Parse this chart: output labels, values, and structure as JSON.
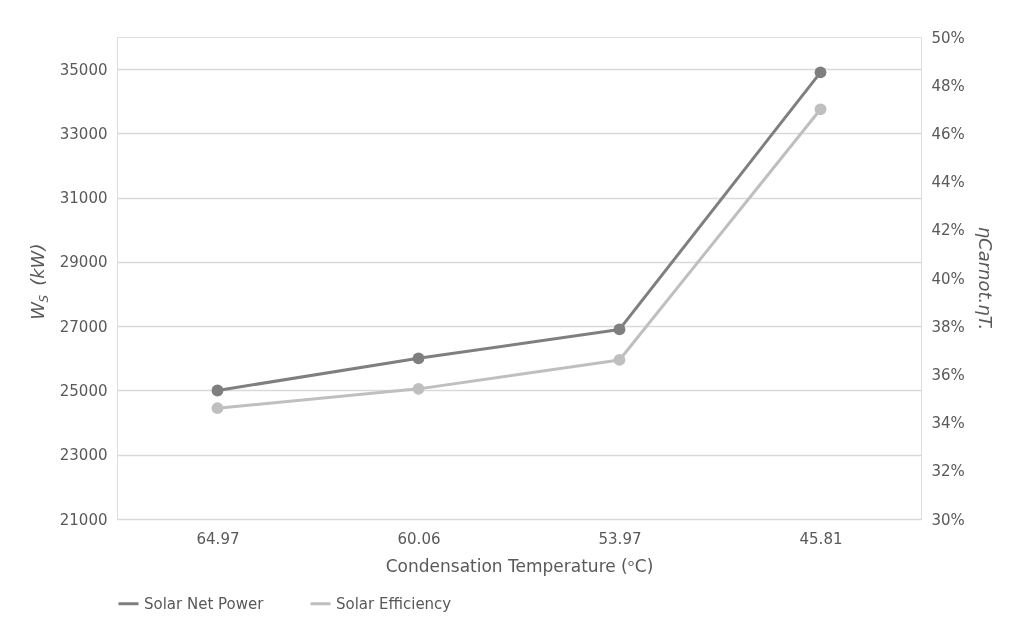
{
  "chart_data": {
    "type": "line",
    "xlabel": "Condensation Temperature (ᵒC)",
    "ylabel": "W$_{S}$ (kW)",
    "y2label": "ηCarnot.ηT.",
    "categories": [
      "64.97",
      "60.06",
      "53.97",
      "45.81"
    ],
    "series": [
      {
        "name": "Solar Net Power",
        "color": "#7f7f7f",
        "values": [
          25000,
          26000,
          26900,
          34900
        ]
      },
      {
        "name": "Solar Efficiency",
        "color": "#bfbfbf",
        "axis": "y2",
        "values": [
          34.6,
          35.4,
          36.6,
          47.0
        ]
      }
    ],
    "ylim": [
      21000,
      36000
    ],
    "yticks": [
      21000,
      23000,
      25000,
      27000,
      29000,
      31000,
      33000,
      35000
    ],
    "y2lim": [
      30,
      50
    ],
    "y2ticks": [
      {
        "value": 30,
        "label": "30%"
      },
      {
        "value": 32,
        "label": "32%"
      },
      {
        "value": 34,
        "label": "34%"
      },
      {
        "value": 36,
        "label": "36%"
      },
      {
        "value": 38,
        "label": "38%"
      },
      {
        "value": 40,
        "label": "40%"
      },
      {
        "value": 42,
        "label": "42%"
      },
      {
        "value": 44,
        "label": "44%"
      },
      {
        "value": 46,
        "label": "46%"
      },
      {
        "value": 48,
        "label": "48%"
      },
      {
        "value": 50,
        "label": "50%"
      }
    ],
    "grid": "y",
    "legend": "bottom",
    "marker": "circle",
    "line_style": "solid"
  }
}
